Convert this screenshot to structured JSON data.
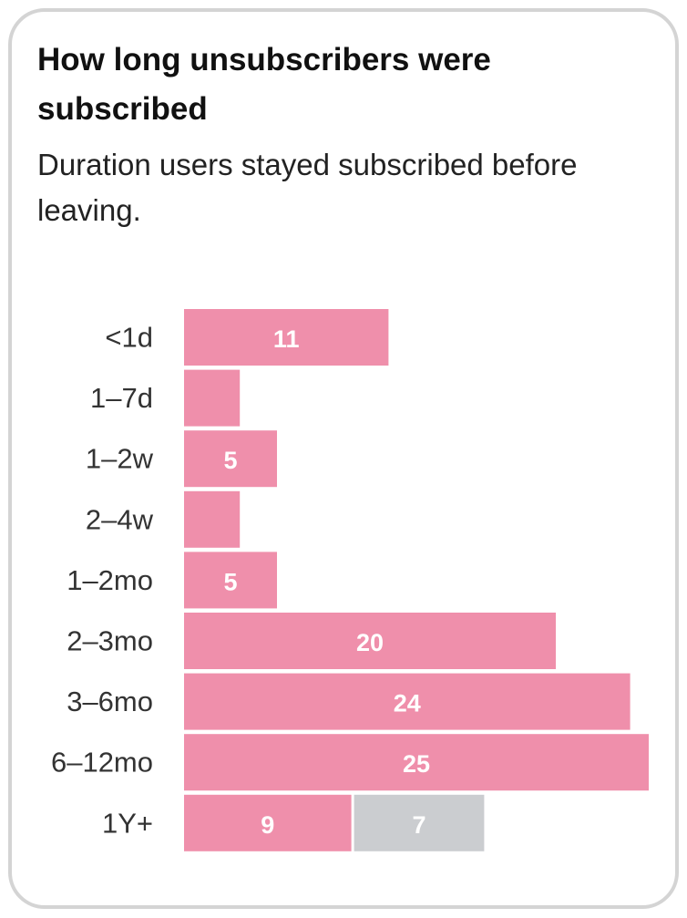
{
  "card": {
    "title": "How long unsubscribers were subscribed",
    "subtitle": "Duration users stayed subscribed before leaving."
  },
  "chart_data": {
    "type": "bar",
    "orientation": "horizontal",
    "stacked": true,
    "title": "How long unsubscribers were subscribed",
    "subtitle": "Duration users stayed subscribed before leaving.",
    "categories": [
      "<1d",
      "1–7d",
      "1–2w",
      "2–4w",
      "1–2mo",
      "2–3mo",
      "3–6mo",
      "6–12mo",
      "1Y+"
    ],
    "series": [
      {
        "color": "#ef8fab",
        "values": [
          11,
          3,
          5,
          3,
          5,
          20,
          24,
          25,
          9
        ]
      },
      {
        "color": "#cbcdd0",
        "values": [
          0,
          0,
          0,
          0,
          0,
          0,
          0,
          0,
          7
        ]
      }
    ],
    "data_labels": [
      [
        "11",
        "",
        "5",
        "",
        "5",
        "20",
        "24",
        "25",
        "9"
      ],
      [
        "",
        "",
        "",
        "",
        "",
        "",
        "",
        "",
        "7"
      ]
    ],
    "xlim": [
      0,
      25
    ],
    "grid": false,
    "axes_visible": false,
    "legend": "none"
  }
}
